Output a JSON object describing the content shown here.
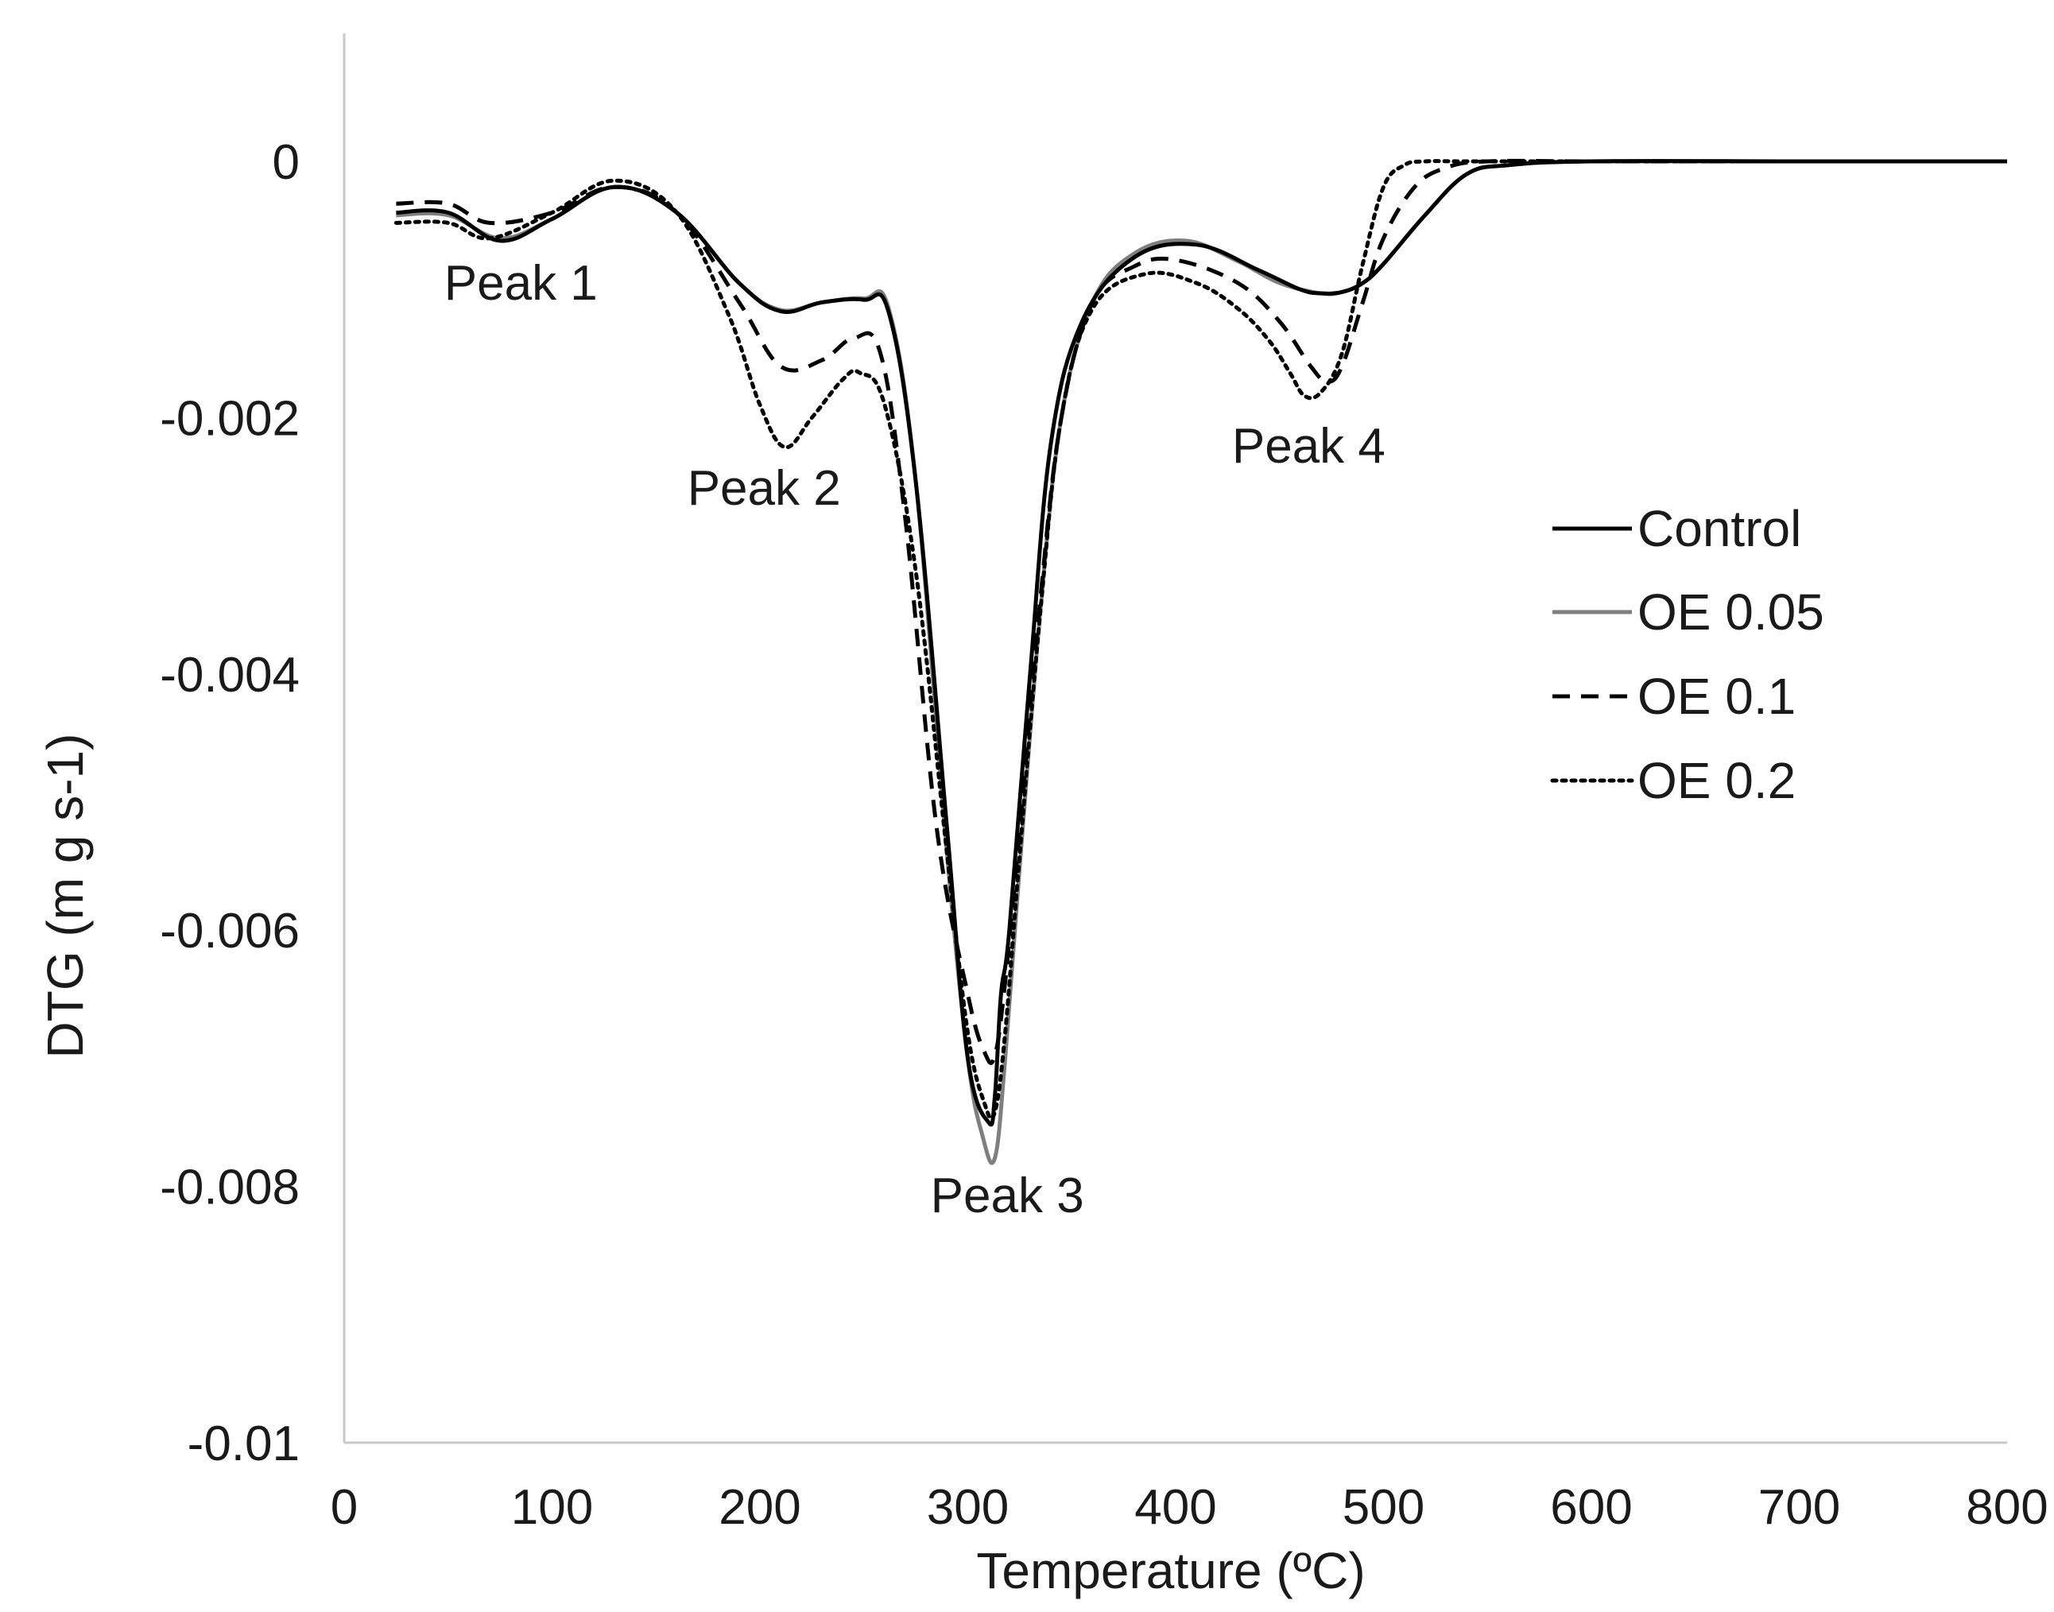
{
  "chart_data": {
    "type": "line",
    "title": "",
    "xlabel": "Temperature (ºC)",
    "ylabel": "DTG (m g s-1)",
    "xlim": [
      0,
      800
    ],
    "ylim": [
      -0.01,
      0.001
    ],
    "x_ticks": [
      0,
      100,
      200,
      300,
      400,
      500,
      600,
      700,
      800
    ],
    "x_tick_labels": [
      "0",
      "100",
      "200",
      "300",
      "400",
      "500",
      "600",
      "700",
      "800"
    ],
    "y_ticks": [
      0,
      -0.002,
      -0.004,
      -0.006,
      -0.008,
      -0.01
    ],
    "y_tick_labels": [
      "0",
      "-0.002",
      "-0.004",
      "-0.006",
      "-0.008",
      "-0.01"
    ],
    "grid": false,
    "legend_position": "right",
    "annotations": [
      {
        "text": "Peak 1",
        "x": 85,
        "y": -0.00108
      },
      {
        "text": "Peak 2",
        "x": 202,
        "y": -0.00268
      },
      {
        "text": "Peak 3",
        "x": 319,
        "y": -0.0082
      },
      {
        "text": "Peak 4",
        "x": 464,
        "y": -0.00235
      }
    ],
    "series": [
      {
        "name": "Control",
        "color": "#000000",
        "dash": "solid",
        "x": [
          25,
          50,
          75,
          100,
          130,
          160,
          190,
          210,
          230,
          250,
          262,
          275,
          290,
          300,
          310,
          313,
          316,
          320,
          330,
          340,
          355,
          380,
          410,
          440,
          460,
          470,
          480,
          490,
          500,
          520,
          540,
          560,
          600,
          700,
          800
        ],
        "y": [
          -0.0004,
          -0.0004,
          -0.00062,
          -0.00045,
          -0.0002,
          -0.0004,
          -0.00095,
          -0.00117,
          -0.0011,
          -0.00108,
          -0.00118,
          -0.0025,
          -0.0052,
          -0.007,
          -0.0075,
          -0.0073,
          -0.0065,
          -0.006,
          -0.004,
          -0.0022,
          -0.00125,
          -0.00075,
          -0.00065,
          -0.00085,
          -0.001,
          -0.00103,
          -0.00102,
          -0.00095,
          -0.0008,
          -0.00042,
          -0.0001,
          -3e-05,
          0.0,
          0.0,
          0.0
        ]
      },
      {
        "name": "OE 0.05",
        "color": "#7f7f7f",
        "dash": "solid",
        "x": [
          25,
          50,
          75,
          100,
          130,
          160,
          190,
          210,
          230,
          250,
          262,
          275,
          290,
          300,
          307,
          313,
          318,
          325,
          335,
          345,
          360,
          380,
          405,
          430,
          450,
          470,
          480,
          490,
          500,
          520,
          540,
          560,
          600,
          700,
          800
        ],
        "y": [
          -0.00042,
          -0.00042,
          -0.0006,
          -0.00045,
          -0.0002,
          -0.0004,
          -0.00095,
          -0.00116,
          -0.0011,
          -0.00107,
          -0.00115,
          -0.0025,
          -0.0054,
          -0.007,
          -0.0076,
          -0.00778,
          -0.007,
          -0.0055,
          -0.0035,
          -0.002,
          -0.0011,
          -0.00072,
          -0.00062,
          -0.00078,
          -0.00095,
          -0.00103,
          -0.00102,
          -0.00095,
          -0.0008,
          -0.00042,
          -0.0001,
          -3e-05,
          0.0,
          0.0,
          0.0
        ]
      },
      {
        "name": "OE 0.1",
        "color": "#000000",
        "dash": "dashed",
        "x": [
          25,
          50,
          70,
          100,
          130,
          160,
          190,
          210,
          230,
          245,
          258,
          270,
          285,
          300,
          308,
          313,
          318,
          325,
          335,
          345,
          360,
          380,
          400,
          430,
          450,
          465,
          473,
          480,
          490,
          500,
          515,
          530,
          550,
          600,
          700,
          800
        ],
        "y": [
          -0.00033,
          -0.00033,
          -0.00048,
          -0.0004,
          -0.0002,
          -0.0004,
          -0.0011,
          -0.0016,
          -0.00155,
          -0.00138,
          -0.0015,
          -0.0028,
          -0.0052,
          -0.0065,
          -0.00695,
          -0.00698,
          -0.0064,
          -0.0052,
          -0.0034,
          -0.002,
          -0.0011,
          -0.00082,
          -0.00077,
          -0.00095,
          -0.00125,
          -0.0016,
          -0.00172,
          -0.0016,
          -0.0011,
          -0.0006,
          -0.0002,
          -5e-05,
          0.0,
          0.0,
          0.0,
          0.0
        ]
      },
      {
        "name": "OE 0.2",
        "color": "#000000",
        "dash": "dotted",
        "x": [
          25,
          50,
          70,
          100,
          130,
          160,
          185,
          200,
          212,
          225,
          240,
          248,
          260,
          275,
          290,
          300,
          308,
          313,
          318,
          325,
          335,
          345,
          360,
          385,
          410,
          430,
          445,
          455,
          462,
          470,
          480,
          490,
          500,
          510,
          520,
          540,
          600,
          700,
          800
        ],
        "y": [
          -0.00048,
          -0.00048,
          -0.0006,
          -0.0004,
          -0.00015,
          -0.0004,
          -0.0012,
          -0.0019,
          -0.00223,
          -0.002,
          -0.0017,
          -0.00165,
          -0.0019,
          -0.0032,
          -0.0054,
          -0.0068,
          -0.00735,
          -0.00742,
          -0.0068,
          -0.0054,
          -0.0035,
          -0.002,
          -0.00115,
          -0.00088,
          -0.00095,
          -0.00115,
          -0.0014,
          -0.00165,
          -0.00183,
          -0.0018,
          -0.0015,
          -0.0008,
          -0.0002,
          -3e-05,
          0.0,
          0.0,
          0.0,
          0.0,
          0.0
        ]
      }
    ]
  }
}
